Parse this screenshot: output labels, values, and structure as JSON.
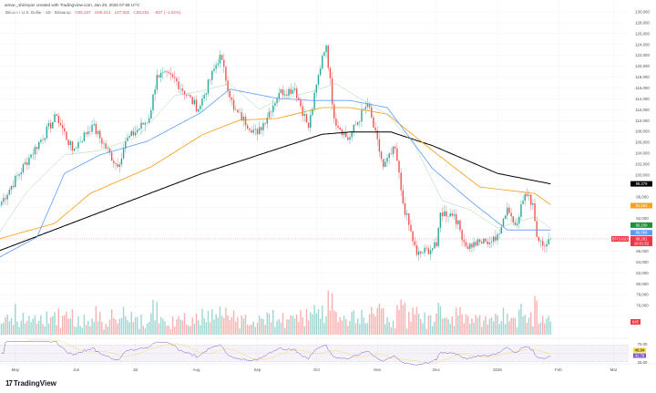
{
  "header": {
    "attribution": "aiman_shirinyan created with TradingView.com, Jan 29, 2026 07:58 UTC",
    "symbol": "Bitcoin / U.S. Dollar · 1D · Bitstamp",
    "open": "O89,167",
    "high": "H89,214",
    "low": "L87,582",
    "close": "C88,261",
    "change": "−907 (−1.02%)"
  },
  "logo": {
    "mark": "17",
    "text": "TradingView"
  },
  "colors": {
    "up": "#26a69a",
    "down": "#ef5350",
    "ma_black": "#000000",
    "ma_orange": "#f59a11",
    "ma_blue": "#5b9cf6",
    "ma_green": "#a5d6a7",
    "rsi": "#7e57c2",
    "rsi_ma": "#f5d742"
  },
  "chart_data": {
    "type": "candlestick",
    "y_axis": {
      "min": 66000,
      "max": 132000,
      "step": 2000,
      "position": "right"
    },
    "x_ticks": [
      "May",
      "Jun",
      "Jul",
      "Aug",
      "Sep",
      "Oct",
      "Nov",
      "Dec",
      "2026",
      "Feb",
      "Mar"
    ],
    "x_tick_dates": [
      "2025-05-01",
      "2025-06-01",
      "2025-07-01",
      "2025-08-01",
      "2025-09-01",
      "2025-10-01",
      "2025-11-01",
      "2025-12-01",
      "2026-01-01",
      "2026-02-01",
      "2026-03-01"
    ],
    "grid": true,
    "close_keypoints": [
      [
        "2025-04-23",
        94500
      ],
      [
        "2025-05-08",
        103200
      ],
      [
        "2025-05-22",
        110900
      ],
      [
        "2025-05-30",
        104500
      ],
      [
        "2025-06-09",
        109200
      ],
      [
        "2025-06-22",
        101500
      ],
      [
        "2025-06-26",
        106200
      ],
      [
        "2025-07-08",
        110400
      ],
      [
        "2025-07-12",
        118400
      ],
      [
        "2025-07-20",
        118000
      ],
      [
        "2025-08-02",
        112100
      ],
      [
        "2025-08-13",
        122100
      ],
      [
        "2025-08-20",
        112000
      ],
      [
        "2025-09-01",
        107500
      ],
      [
        "2025-09-12",
        115100
      ],
      [
        "2025-09-20",
        115900
      ],
      [
        "2025-09-27",
        108700
      ],
      [
        "2025-10-04",
        121900
      ],
      [
        "2025-10-06",
        123800
      ],
      [
        "2025-10-10",
        110400
      ],
      [
        "2025-10-17",
        106500
      ],
      [
        "2025-10-27",
        113200
      ],
      [
        "2025-11-04",
        101500
      ],
      [
        "2025-11-10",
        104900
      ],
      [
        "2025-11-14",
        94800
      ],
      [
        "2025-11-21",
        85300
      ],
      [
        "2025-12-01",
        86900
      ],
      [
        "2025-12-03",
        93100
      ],
      [
        "2025-12-10",
        92800
      ],
      [
        "2025-12-16",
        86900
      ],
      [
        "2025-12-26",
        87800
      ],
      [
        "2025-12-31",
        88000
      ],
      [
        "2026-01-06",
        94000
      ],
      [
        "2026-01-10",
        90800
      ],
      [
        "2026-01-15",
        96500
      ],
      [
        "2026-01-19",
        94800
      ],
      [
        "2026-01-21",
        88600
      ],
      [
        "2026-01-26",
        87300
      ],
      [
        "2026-01-28",
        88261
      ]
    ],
    "moving_averages": [
      {
        "color_key": "ma_black",
        "last": "98,379",
        "points": [
          [
            "2025-04-23",
            86100
          ],
          [
            "2025-08-04",
            100300
          ],
          [
            "2025-10-04",
            107500
          ],
          [
            "2025-10-18",
            107900
          ],
          [
            "2025-11-08",
            107900
          ],
          [
            "2025-11-29",
            105400
          ],
          [
            "2026-01-01",
            100300
          ],
          [
            "2026-01-28",
            98379
          ]
        ]
      },
      {
        "color_key": "ma_orange",
        "last": "94,553",
        "points": [
          [
            "2025-04-23",
            88300
          ],
          [
            "2025-05-21",
            91100
          ],
          [
            "2025-06-08",
            96600
          ],
          [
            "2025-07-09",
            101500
          ],
          [
            "2025-08-04",
            107400
          ],
          [
            "2025-08-23",
            110100
          ],
          [
            "2025-09-11",
            110400
          ],
          [
            "2025-10-04",
            112400
          ],
          [
            "2025-10-18",
            112400
          ],
          [
            "2025-11-06",
            111200
          ],
          [
            "2025-11-29",
            104500
          ],
          [
            "2025-12-23",
            97800
          ],
          [
            "2026-01-20",
            96600
          ],
          [
            "2026-01-28",
            94553
          ]
        ]
      },
      {
        "color_key": "ma_blue",
        "last": "89,888",
        "points": [
          [
            "2025-04-23",
            84900
          ],
          [
            "2025-05-12",
            88600
          ],
          [
            "2025-05-26",
            100300
          ],
          [
            "2025-06-13",
            103700
          ],
          [
            "2025-07-07",
            106200
          ],
          [
            "2025-08-03",
            111400
          ],
          [
            "2025-08-18",
            115800
          ],
          [
            "2025-09-11",
            114100
          ],
          [
            "2025-09-29",
            113700
          ],
          [
            "2025-10-18",
            113700
          ],
          [
            "2025-11-06",
            112400
          ],
          [
            "2025-11-29",
            101200
          ],
          [
            "2025-12-18",
            95300
          ],
          [
            "2026-01-06",
            89900
          ],
          [
            "2026-01-20",
            89900
          ],
          [
            "2026-01-28",
            89888
          ]
        ]
      },
      {
        "color_key": "ma_green",
        "last": "90,209",
        "points": [
          [
            "2025-04-23",
            89400
          ],
          [
            "2025-05-07",
            97000
          ],
          [
            "2025-05-26",
            103700
          ],
          [
            "2025-06-13",
            104500
          ],
          [
            "2025-07-02",
            107000
          ],
          [
            "2025-07-21",
            114600
          ],
          [
            "2025-08-03",
            115400
          ],
          [
            "2025-08-18",
            116800
          ],
          [
            "2025-09-02",
            112100
          ],
          [
            "2025-09-11",
            113700
          ],
          [
            "2025-09-29",
            115400
          ],
          [
            "2025-10-11",
            116800
          ],
          [
            "2025-10-23",
            114100
          ],
          [
            "2025-11-06",
            111100
          ],
          [
            "2025-11-20",
            105400
          ],
          [
            "2025-12-04",
            95300
          ],
          [
            "2025-12-18",
            93600
          ],
          [
            "2026-01-01",
            90300
          ],
          [
            "2026-01-20",
            92300
          ],
          [
            "2026-01-28",
            90209
          ]
        ]
      }
    ],
    "last_price_label": {
      "symbol": "BTCUSD",
      "price": "88,261",
      "countdown": "16:01:52"
    },
    "volume_label": "845",
    "rsi": {
      "levels": [
        "75.00",
        "25.00"
      ],
      "value": "42.78",
      "ma_value": "46.94"
    }
  }
}
